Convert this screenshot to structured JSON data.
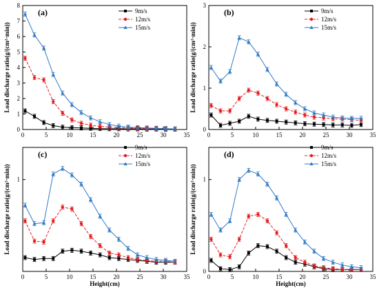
{
  "figure": {
    "colors": {
      "9m/s": "#000000",
      "12m/s": "#e41a1c",
      "15m/s": "#2f78c4"
    }
  },
  "chart_data": [
    {
      "type": "line",
      "panel": "(a)",
      "xlabel": "",
      "ylabel": "Load discharge ratio(g/(cm²·min))",
      "xlim": [
        0,
        35
      ],
      "ylim": [
        0,
        8
      ],
      "xticks": [
        0,
        5,
        10,
        15,
        20,
        25,
        30,
        35
      ],
      "yticks": [
        0,
        1,
        2,
        3,
        4,
        5,
        6,
        7,
        8
      ],
      "legend_position": "top-right",
      "series": [
        {
          "name": "9m/s",
          "marker": "square",
          "line": "solid",
          "x": [
            0.5,
            2.5,
            4.5,
            6.5,
            8.5,
            10.5,
            12.5,
            14.5,
            16.5,
            18.5,
            20.5,
            22.5,
            24.5,
            26.5,
            28.5,
            30.5,
            32.5
          ],
          "y": [
            1.2,
            0.85,
            0.45,
            0.25,
            0.15,
            0.12,
            0.1,
            0.08,
            0.06,
            0.05,
            0.05,
            0.04,
            0.04,
            0.03,
            0.03,
            0.02,
            0.02
          ]
        },
        {
          "name": "12m/s",
          "marker": "circle",
          "line": "dashed",
          "x": [
            0.5,
            2.5,
            4.5,
            6.5,
            8.5,
            10.5,
            12.5,
            14.5,
            16.5,
            18.5,
            20.5,
            22.5,
            24.5,
            26.5,
            28.5,
            30.5,
            32.5
          ],
          "y": [
            4.6,
            3.35,
            3.2,
            1.8,
            1.05,
            0.62,
            0.4,
            0.28,
            0.2,
            0.15,
            0.12,
            0.1,
            0.08,
            0.06,
            0.05,
            0.04,
            0.03
          ]
        },
        {
          "name": "15m/s",
          "marker": "triangle",
          "line": "solid",
          "x": [
            0.5,
            2.5,
            4.5,
            6.5,
            8.5,
            10.5,
            12.5,
            14.5,
            16.5,
            18.5,
            20.5,
            22.5,
            24.5,
            26.5,
            28.5,
            30.5,
            32.5
          ],
          "y": [
            7.45,
            6.1,
            5.25,
            3.55,
            2.35,
            1.6,
            1.1,
            0.75,
            0.5,
            0.32,
            0.22,
            0.15,
            0.12,
            0.1,
            0.08,
            0.06,
            0.04
          ]
        }
      ]
    },
    {
      "type": "line",
      "panel": "(b)",
      "xlabel": "",
      "ylabel": "Load discharge ratio(g/(cm²·min))",
      "xlim": [
        0,
        35
      ],
      "ylim": [
        0,
        3
      ],
      "xticks": [
        0,
        5,
        10,
        15,
        20,
        25,
        30,
        35
      ],
      "yticks": [
        0,
        1,
        2,
        3
      ],
      "legend_position": "top-right",
      "series": [
        {
          "name": "9m/s",
          "marker": "square",
          "line": "solid",
          "x": [
            0.5,
            2.5,
            4.5,
            6.5,
            8.5,
            10.5,
            12.5,
            14.5,
            16.5,
            18.5,
            20.5,
            22.5,
            24.5,
            26.5,
            28.5,
            30.5,
            32.5
          ],
          "y": [
            0.35,
            0.1,
            0.15,
            0.2,
            0.32,
            0.25,
            0.22,
            0.2,
            0.18,
            0.16,
            0.14,
            0.13,
            0.12,
            0.11,
            0.11,
            0.1,
            0.12
          ]
        },
        {
          "name": "12m/s",
          "marker": "circle",
          "line": "dashed",
          "x": [
            0.5,
            2.5,
            4.5,
            6.5,
            8.5,
            10.5,
            12.5,
            14.5,
            16.5,
            18.5,
            20.5,
            22.5,
            24.5,
            26.5,
            28.5,
            30.5,
            32.5
          ],
          "y": [
            0.58,
            0.45,
            0.45,
            0.75,
            0.95,
            0.88,
            0.75,
            0.6,
            0.5,
            0.42,
            0.35,
            0.3,
            0.28,
            0.26,
            0.25,
            0.24,
            0.22
          ]
        },
        {
          "name": "15m/s",
          "marker": "triangle",
          "line": "solid",
          "x": [
            0.5,
            2.5,
            4.5,
            6.5,
            8.5,
            10.5,
            12.5,
            14.5,
            16.5,
            18.5,
            20.5,
            22.5,
            24.5,
            26.5,
            28.5,
            30.5,
            32.5
          ],
          "y": [
            1.5,
            1.17,
            1.4,
            2.22,
            2.12,
            1.82,
            1.45,
            1.1,
            0.85,
            0.65,
            0.5,
            0.4,
            0.35,
            0.3,
            0.28,
            0.27,
            0.27
          ]
        }
      ]
    },
    {
      "type": "line",
      "panel": "(c)",
      "xlabel": "Height(cm)",
      "ylabel": "Load discharge ratio(g/(cm²·min))",
      "xlim": [
        0,
        35
      ],
      "ylim": [
        0,
        1.35
      ],
      "xticks": [
        0,
        5,
        10,
        15,
        20,
        25,
        30,
        35
      ],
      "yticks": [
        1
      ],
      "legend_position": "top-right",
      "series": [
        {
          "name": "9m/s",
          "marker": "square",
          "line": "solid",
          "x": [
            0.5,
            2.5,
            4.5,
            6.5,
            8.5,
            10.5,
            12.5,
            14.5,
            16.5,
            18.5,
            20.5,
            22.5,
            24.5,
            26.5,
            28.5,
            30.5,
            32.5
          ],
          "y": [
            0.15,
            0.13,
            0.14,
            0.14,
            0.22,
            0.23,
            0.22,
            0.2,
            0.18,
            0.15,
            0.14,
            0.13,
            0.12,
            0.11,
            0.1,
            0.1,
            0.1
          ]
        },
        {
          "name": "12m/s",
          "marker": "circle",
          "line": "dashed",
          "x": [
            0.5,
            2.5,
            4.5,
            6.5,
            8.5,
            10.5,
            12.5,
            14.5,
            16.5,
            18.5,
            20.5,
            22.5,
            24.5,
            26.5,
            28.5,
            30.5,
            32.5
          ],
          "y": [
            0.55,
            0.33,
            0.32,
            0.55,
            0.7,
            0.68,
            0.52,
            0.38,
            0.28,
            0.2,
            0.18,
            0.15,
            0.13,
            0.12,
            0.11,
            0.11,
            0.1
          ]
        },
        {
          "name": "15m/s",
          "marker": "triangle",
          "line": "solid",
          "x": [
            0.5,
            2.5,
            4.5,
            6.5,
            8.5,
            10.5,
            12.5,
            14.5,
            16.5,
            18.5,
            20.5,
            22.5,
            24.5,
            26.5,
            28.5,
            30.5,
            32.5
          ],
          "y": [
            0.72,
            0.52,
            0.53,
            1.06,
            1.12,
            1.05,
            0.95,
            0.78,
            0.6,
            0.45,
            0.35,
            0.25,
            0.18,
            0.15,
            0.13,
            0.12,
            0.11
          ]
        }
      ]
    },
    {
      "type": "line",
      "panel": "(d)",
      "xlabel": "Height(cm)",
      "ylabel": "Load discharge ratio(g/(cm²·min))",
      "xlim": [
        0,
        35
      ],
      "ylim": [
        0,
        1.35
      ],
      "xticks": [
        0,
        5,
        10,
        15,
        20,
        25,
        30,
        35
      ],
      "yticks": [
        0,
        1
      ],
      "legend_position": "top-right",
      "series": [
        {
          "name": "9m/s",
          "marker": "square",
          "line": "solid",
          "x": [
            0.5,
            2.5,
            4.5,
            6.5,
            8.5,
            10.5,
            12.5,
            14.5,
            16.5,
            18.5,
            20.5,
            22.5,
            24.5,
            26.5,
            28.5,
            30.5,
            32.5
          ],
          "y": [
            0.12,
            0.03,
            0.02,
            0.05,
            0.2,
            0.28,
            0.27,
            0.22,
            0.15,
            0.1,
            0.08,
            0.05,
            0.03,
            0.02,
            0.02,
            0.02,
            0.02
          ]
        },
        {
          "name": "12m/s",
          "marker": "circle",
          "line": "dashed",
          "x": [
            0.5,
            2.5,
            4.5,
            6.5,
            8.5,
            10.5,
            12.5,
            14.5,
            16.5,
            18.5,
            20.5,
            22.5,
            24.5,
            26.5,
            28.5,
            30.5,
            32.5
          ],
          "y": [
            0.35,
            0.18,
            0.16,
            0.35,
            0.6,
            0.62,
            0.55,
            0.42,
            0.28,
            0.15,
            0.1,
            0.06,
            0.04,
            0.03,
            0.02,
            0.02,
            0.02
          ]
        },
        {
          "name": "15m/s",
          "marker": "triangle",
          "line": "solid",
          "x": [
            0.5,
            2.5,
            4.5,
            6.5,
            8.5,
            10.5,
            12.5,
            14.5,
            16.5,
            18.5,
            20.5,
            22.5,
            24.5,
            26.5,
            28.5,
            30.5,
            32.5
          ],
          "y": [
            0.62,
            0.45,
            0.55,
            1.0,
            1.1,
            1.06,
            0.95,
            0.8,
            0.62,
            0.45,
            0.32,
            0.22,
            0.14,
            0.1,
            0.07,
            0.05,
            0.04
          ]
        }
      ]
    }
  ]
}
